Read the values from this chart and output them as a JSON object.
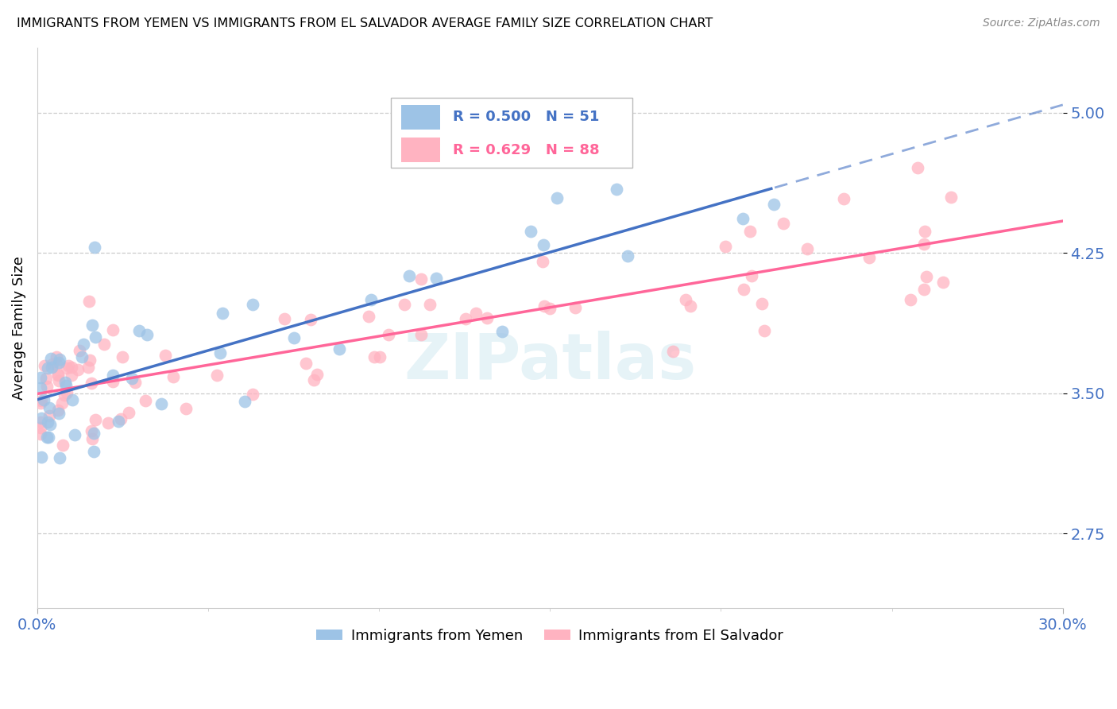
{
  "title": "IMMIGRANTS FROM YEMEN VS IMMIGRANTS FROM EL SALVADOR AVERAGE FAMILY SIZE CORRELATION CHART",
  "source": "Source: ZipAtlas.com",
  "ylabel": "Average Family Size",
  "yticks": [
    2.75,
    3.5,
    4.25,
    5.0
  ],
  "ylim": [
    2.35,
    5.35
  ],
  "xlim": [
    0.0,
    0.3
  ],
  "legend_r_yemen": "0.500",
  "legend_n_yemen": "51",
  "legend_r_salvador": "0.629",
  "legend_n_salvador": "88",
  "color_yemen": "#9DC3E6",
  "color_salvador": "#FFB3C1",
  "color_trend_yemen": "#4472C4",
  "color_trend_salvador": "#FF6699",
  "watermark": "ZIPatlas",
  "background_color": "#FFFFFF",
  "grid_color": "#CCCCCC",
  "tick_label_color": "#4472C4"
}
